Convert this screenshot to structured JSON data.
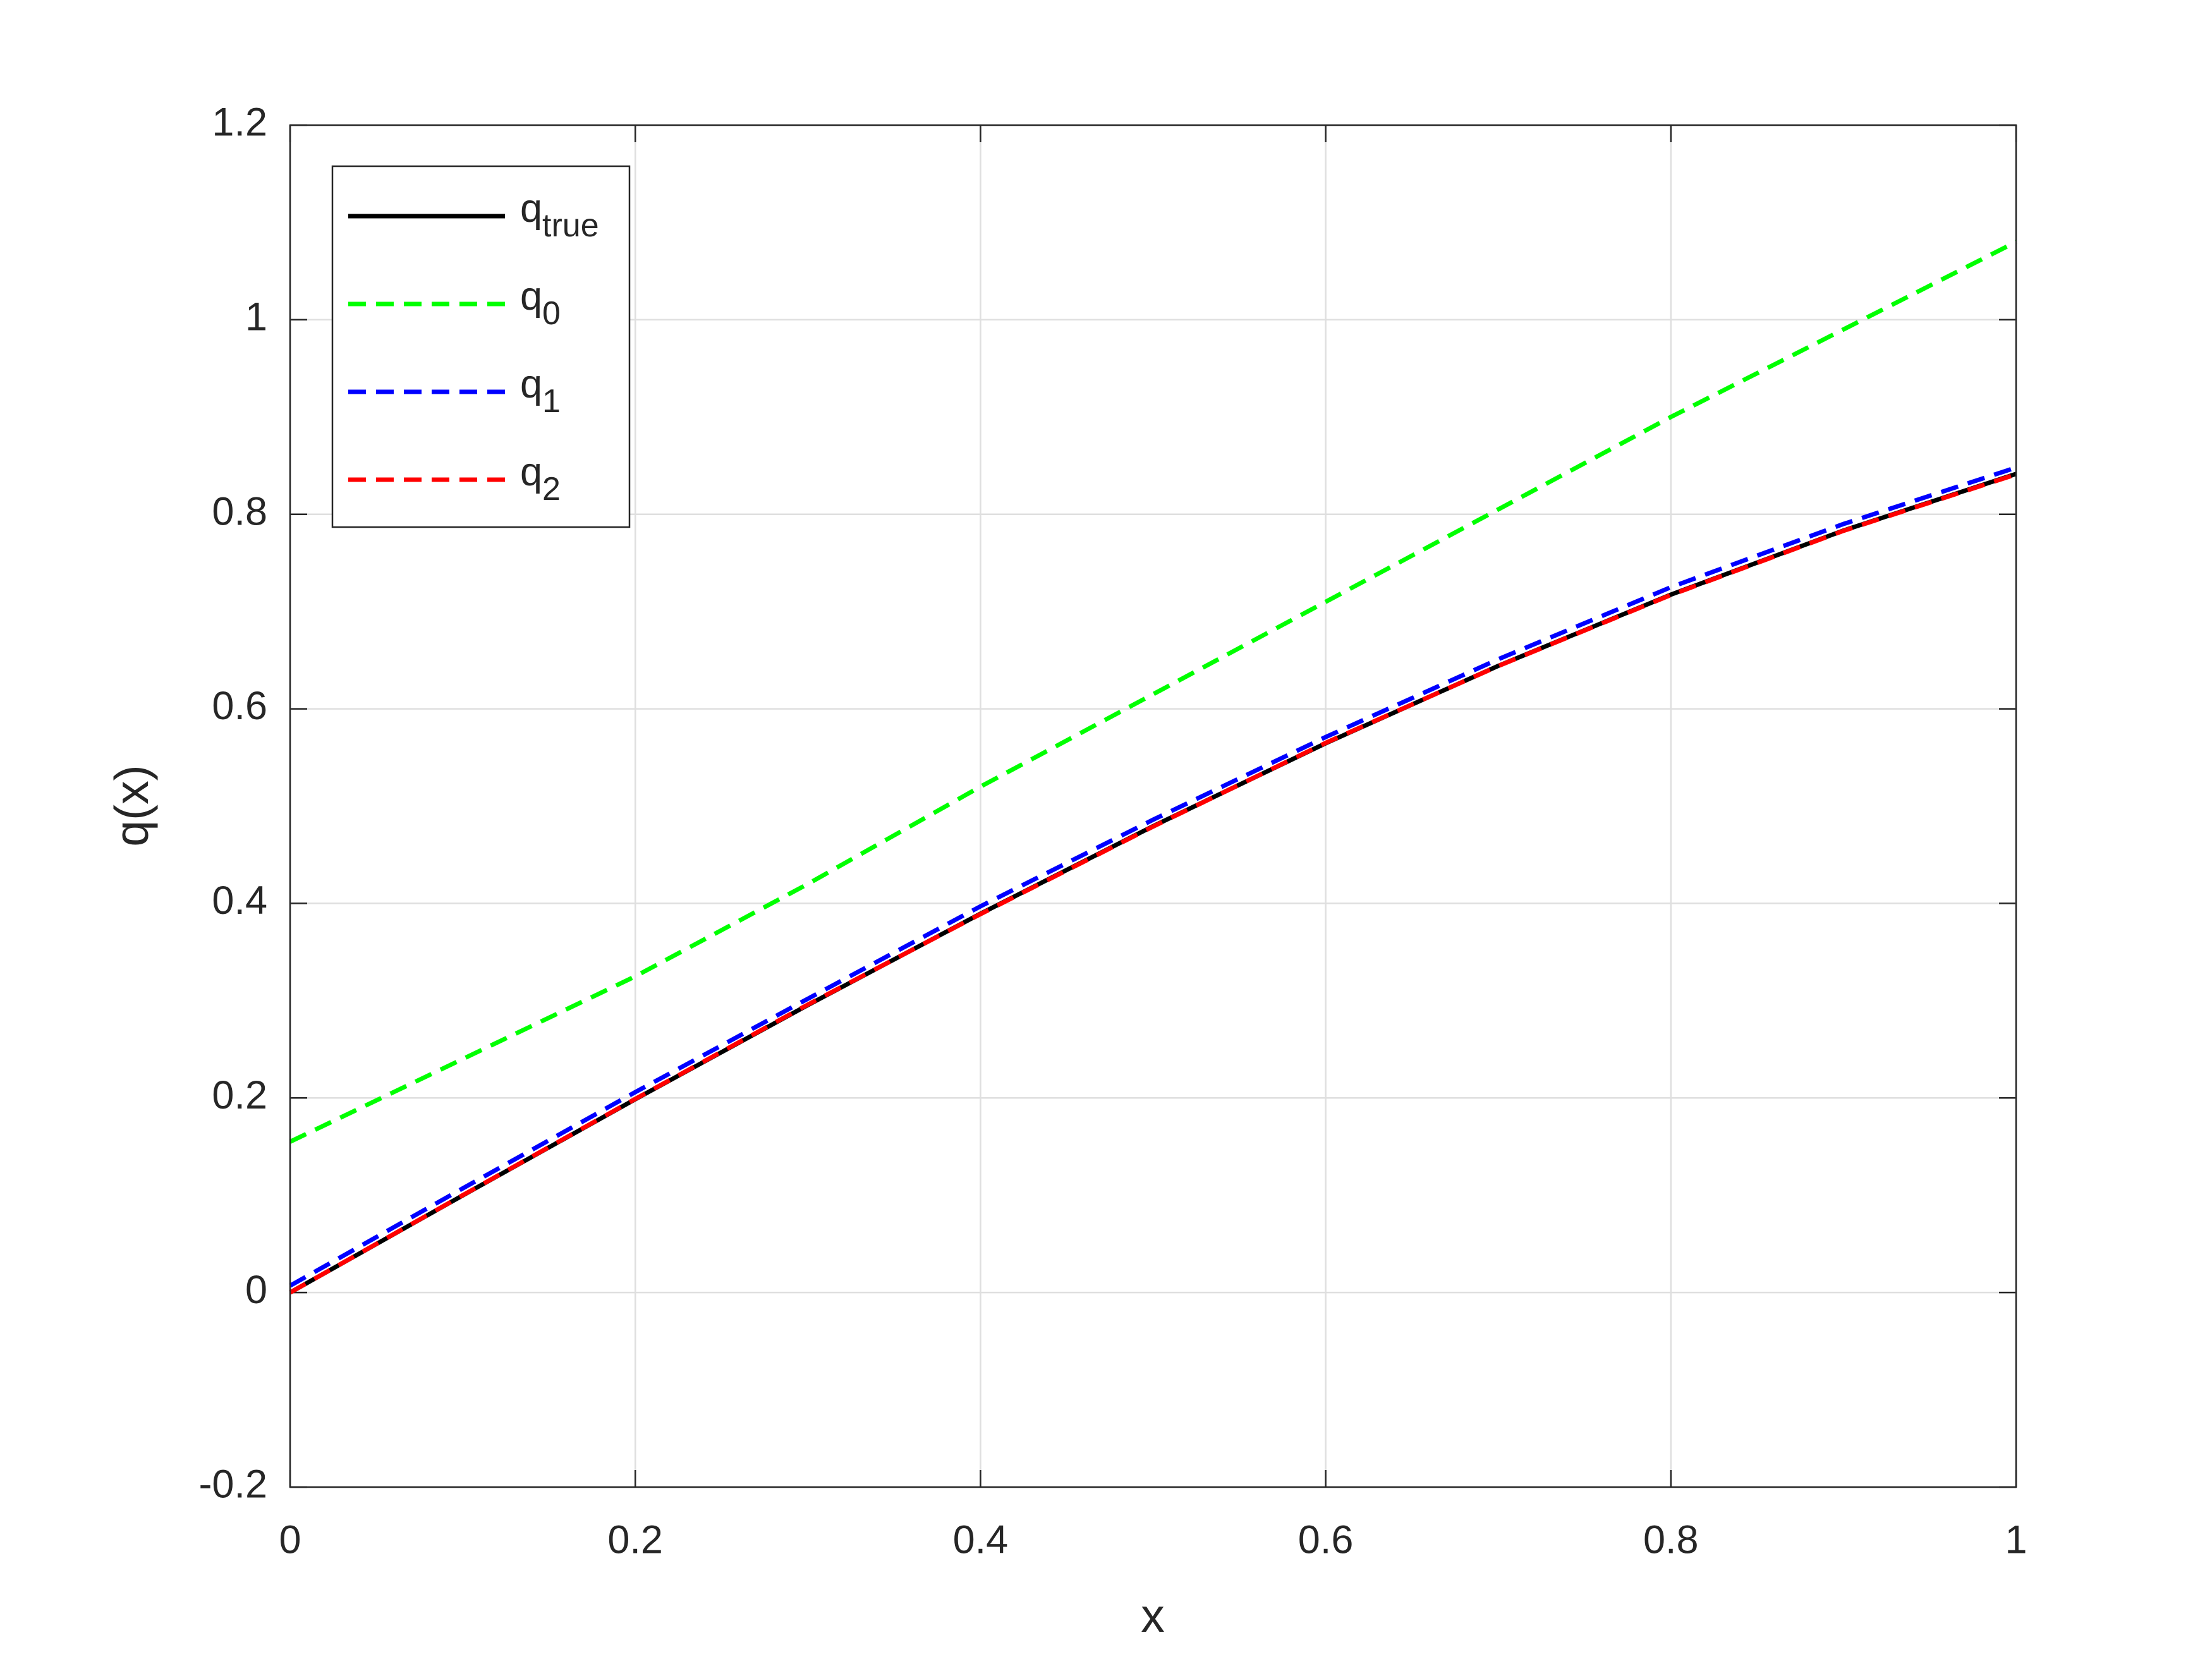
{
  "chart_data": {
    "type": "line",
    "xlabel": "x",
    "ylabel": "q(x)",
    "x": [
      0,
      0.1,
      0.2,
      0.3,
      0.4,
      0.5,
      0.6,
      0.7,
      0.8,
      0.9,
      1.0
    ],
    "series": [
      {
        "name": "q",
        "name_sub": "true",
        "color": "#000000",
        "linestyle": "solid",
        "values": [
          0,
          0.0998,
          0.1987,
          0.2955,
          0.3894,
          0.4794,
          0.5646,
          0.6442,
          0.7174,
          0.7833,
          0.8415
        ]
      },
      {
        "name": "q",
        "name_sub": "0",
        "color": "#00ff00",
        "linestyle": "dashed",
        "values": [
          0.155,
          0.24,
          0.325,
          0.42,
          0.52,
          0.615,
          0.71,
          0.805,
          0.9,
          0.99,
          1.08
        ]
      },
      {
        "name": "q",
        "name_sub": "1",
        "color": "#0000ff",
        "linestyle": "dashed",
        "values": [
          0.007,
          0.107,
          0.206,
          0.302,
          0.397,
          0.486,
          0.571,
          0.651,
          0.725,
          0.79,
          0.848
        ]
      },
      {
        "name": "q",
        "name_sub": "2",
        "color": "#ff0000",
        "linestyle": "dashed",
        "values": [
          0,
          0.1,
          0.199,
          0.296,
          0.389,
          0.479,
          0.565,
          0.644,
          0.717,
          0.783,
          0.841
        ]
      }
    ],
    "xlim": [
      0,
      1
    ],
    "xticks": [
      0,
      0.2,
      0.4,
      0.6,
      0.8,
      1
    ],
    "ylim": [
      -0.2,
      1.2
    ],
    "yticks": [
      -0.2,
      0,
      0.2,
      0.4,
      0.6,
      0.8,
      1,
      1.2
    ],
    "grid": true,
    "legend_loc": "upper left"
  }
}
